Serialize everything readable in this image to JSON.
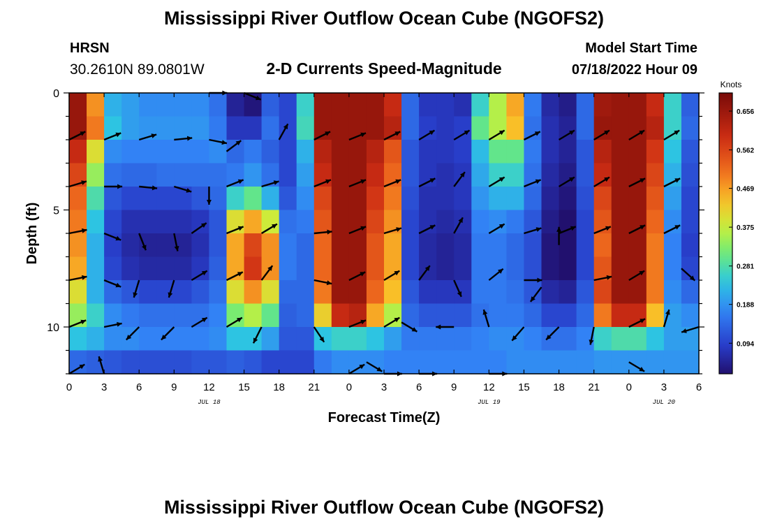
{
  "chart_data": {
    "type": "heatmap",
    "title": "Mississippi River Outflow Ocean Cube (NGOFS2)",
    "station_name": "HRSN",
    "station_coords": "30.2610N  89.0801W",
    "subtitle": "2-D Currents Speed-Magnitude",
    "model_start_label": "Model Start Time",
    "model_start_value": "07/18/2022 Hour 09",
    "xlabel": "Forecast Time(Z)",
    "ylabel": "Depth (ft)",
    "units_label": "Knots",
    "footer_title": "Mississippi River Outflow Ocean Cube (NGOFS2)",
    "x_ticks": [
      "0",
      "3",
      "6",
      "9",
      "12",
      "15",
      "18",
      "21",
      "0",
      "3",
      "6",
      "9",
      "12",
      "15",
      "18",
      "21",
      "0",
      "3",
      "6"
    ],
    "date_labels": [
      {
        "text": "JUL 18",
        "hour": 12
      },
      {
        "text": "JUL 19",
        "hour": 36
      },
      {
        "text": "JUL 20",
        "hour": 51
      }
    ],
    "y_ticks": [
      "0",
      "5",
      "10"
    ],
    "x_range_hours": [
      0,
      54
    ],
    "y_range_ft": [
      0,
      12
    ],
    "colorbar_ticks": [
      "0.656",
      "0.562",
      "0.469",
      "0.375",
      "0.281",
      "0.188",
      "0.094"
    ],
    "colorbar_range": [
      0.02,
      0.7
    ],
    "grid": false,
    "column_hours": [
      0,
      1.5,
      3,
      4.5,
      6,
      7.5,
      9,
      10.5,
      12,
      13.5,
      15,
      16.5,
      18,
      19.5,
      21,
      22.5,
      24,
      25.5,
      27,
      28.5,
      30,
      31.5,
      33,
      34.5,
      36,
      37.5,
      39,
      40.5,
      42,
      43.5,
      45,
      46.5,
      48,
      49.5,
      51,
      52.5
    ],
    "row_depths_ft": [
      0,
      1,
      2,
      3,
      4,
      5,
      6,
      7,
      8,
      9,
      10,
      11
    ],
    "speed_grid_knots": [
      [
        0.66,
        0.48,
        0.22,
        0.2,
        0.18,
        0.18,
        0.18,
        0.18,
        0.15,
        0.05,
        0.03,
        0.13,
        0.1,
        0.26,
        0.66,
        0.66,
        0.66,
        0.66,
        0.6,
        0.14,
        0.08,
        0.08,
        0.07,
        0.26,
        0.36,
        0.46,
        0.16,
        0.06,
        0.04,
        0.14,
        0.65,
        0.66,
        0.66,
        0.6,
        0.26,
        0.13
      ],
      [
        0.66,
        0.5,
        0.24,
        0.2,
        0.19,
        0.19,
        0.19,
        0.19,
        0.16,
        0.08,
        0.08,
        0.15,
        0.1,
        0.27,
        0.66,
        0.66,
        0.66,
        0.66,
        0.62,
        0.14,
        0.09,
        0.08,
        0.09,
        0.3,
        0.36,
        0.44,
        0.15,
        0.07,
        0.05,
        0.14,
        0.66,
        0.66,
        0.66,
        0.62,
        0.26,
        0.14
      ],
      [
        0.6,
        0.4,
        0.18,
        0.17,
        0.17,
        0.17,
        0.17,
        0.17,
        0.18,
        0.14,
        0.16,
        0.13,
        0.1,
        0.22,
        0.62,
        0.66,
        0.66,
        0.62,
        0.54,
        0.12,
        0.08,
        0.08,
        0.09,
        0.23,
        0.3,
        0.3,
        0.16,
        0.07,
        0.05,
        0.12,
        0.62,
        0.66,
        0.66,
        0.58,
        0.24,
        0.12
      ],
      [
        0.56,
        0.34,
        0.15,
        0.14,
        0.14,
        0.15,
        0.15,
        0.15,
        0.15,
        0.16,
        0.19,
        0.15,
        0.1,
        0.2,
        0.6,
        0.66,
        0.66,
        0.6,
        0.52,
        0.12,
        0.08,
        0.07,
        0.08,
        0.21,
        0.26,
        0.26,
        0.15,
        0.06,
        0.04,
        0.12,
        0.6,
        0.66,
        0.66,
        0.56,
        0.22,
        0.11
      ],
      [
        0.52,
        0.28,
        0.12,
        0.1,
        0.1,
        0.1,
        0.1,
        0.12,
        0.14,
        0.26,
        0.3,
        0.22,
        0.12,
        0.18,
        0.56,
        0.66,
        0.66,
        0.58,
        0.5,
        0.11,
        0.07,
        0.07,
        0.08,
        0.19,
        0.22,
        0.22,
        0.14,
        0.05,
        0.03,
        0.11,
        0.56,
        0.66,
        0.66,
        0.54,
        0.2,
        0.1
      ],
      [
        0.5,
        0.24,
        0.1,
        0.07,
        0.07,
        0.07,
        0.07,
        0.08,
        0.12,
        0.4,
        0.46,
        0.38,
        0.15,
        0.16,
        0.54,
        0.66,
        0.66,
        0.56,
        0.48,
        0.1,
        0.07,
        0.06,
        0.07,
        0.17,
        0.18,
        0.16,
        0.12,
        0.04,
        0.02,
        0.1,
        0.54,
        0.66,
        0.66,
        0.52,
        0.18,
        0.1
      ],
      [
        0.48,
        0.22,
        0.09,
        0.06,
        0.05,
        0.05,
        0.05,
        0.07,
        0.12,
        0.46,
        0.56,
        0.48,
        0.16,
        0.14,
        0.52,
        0.66,
        0.66,
        0.54,
        0.46,
        0.1,
        0.06,
        0.05,
        0.06,
        0.16,
        0.16,
        0.14,
        0.11,
        0.03,
        0.02,
        0.1,
        0.52,
        0.66,
        0.66,
        0.5,
        0.17,
        0.09
      ],
      [
        0.46,
        0.22,
        0.1,
        0.07,
        0.06,
        0.06,
        0.06,
        0.08,
        0.13,
        0.46,
        0.58,
        0.48,
        0.16,
        0.14,
        0.52,
        0.66,
        0.66,
        0.54,
        0.46,
        0.1,
        0.06,
        0.05,
        0.06,
        0.16,
        0.16,
        0.14,
        0.11,
        0.03,
        0.01,
        0.1,
        0.54,
        0.66,
        0.66,
        0.5,
        0.17,
        0.1
      ],
      [
        0.4,
        0.22,
        0.14,
        0.12,
        0.1,
        0.1,
        0.1,
        0.12,
        0.15,
        0.4,
        0.48,
        0.4,
        0.14,
        0.14,
        0.5,
        0.66,
        0.66,
        0.52,
        0.44,
        0.12,
        0.08,
        0.08,
        0.08,
        0.16,
        0.16,
        0.15,
        0.12,
        0.06,
        0.05,
        0.12,
        0.56,
        0.66,
        0.66,
        0.5,
        0.18,
        0.14
      ],
      [
        0.34,
        0.26,
        0.18,
        0.16,
        0.15,
        0.15,
        0.15,
        0.15,
        0.17,
        0.32,
        0.36,
        0.3,
        0.13,
        0.14,
        0.42,
        0.6,
        0.62,
        0.46,
        0.36,
        0.14,
        0.12,
        0.12,
        0.12,
        0.15,
        0.16,
        0.16,
        0.14,
        0.1,
        0.1,
        0.14,
        0.5,
        0.6,
        0.6,
        0.44,
        0.2,
        0.18
      ],
      [
        0.24,
        0.22,
        0.18,
        0.18,
        0.17,
        0.17,
        0.17,
        0.17,
        0.18,
        0.24,
        0.24,
        0.2,
        0.12,
        0.12,
        0.24,
        0.26,
        0.26,
        0.24,
        0.2,
        0.16,
        0.16,
        0.16,
        0.16,
        0.17,
        0.18,
        0.18,
        0.17,
        0.15,
        0.15,
        0.17,
        0.26,
        0.28,
        0.28,
        0.24,
        0.2,
        0.2
      ],
      [
        0.14,
        0.13,
        0.12,
        0.11,
        0.11,
        0.11,
        0.11,
        0.12,
        0.12,
        0.13,
        0.12,
        0.1,
        0.1,
        0.1,
        0.16,
        0.18,
        0.18,
        0.18,
        0.17,
        0.17,
        0.17,
        0.17,
        0.17,
        0.17,
        0.17,
        0.18,
        0.18,
        0.18,
        0.18,
        0.18,
        0.19,
        0.19,
        0.19,
        0.19,
        0.19,
        0.19
      ]
    ],
    "current_vectors": [
      {
        "hour": 0,
        "depth": 2,
        "dx": 1,
        "dy": -0.5
      },
      {
        "hour": 3,
        "depth": 2,
        "dx": 1,
        "dy": -0.4
      },
      {
        "hour": 6,
        "depth": 2,
        "dx": 1,
        "dy": -0.3
      },
      {
        "hour": 9,
        "depth": 2,
        "dx": 1,
        "dy": -0.1
      },
      {
        "hour": 12,
        "depth": 2,
        "dx": 1,
        "dy": 0.2
      },
      {
        "hour": 13.5,
        "depth": 2.5,
        "dx": 0.8,
        "dy": -0.6
      },
      {
        "hour": 18,
        "depth": 2,
        "dx": 0.5,
        "dy": -0.9
      },
      {
        "hour": 21,
        "depth": 2,
        "dx": 1,
        "dy": -0.5
      },
      {
        "hour": 24,
        "depth": 2,
        "dx": 1,
        "dy": -0.4
      },
      {
        "hour": 27,
        "depth": 2,
        "dx": 1,
        "dy": -0.5
      },
      {
        "hour": 30,
        "depth": 2,
        "dx": 1,
        "dy": -0.6
      },
      {
        "hour": 33,
        "depth": 2,
        "dx": 1,
        "dy": -0.6
      },
      {
        "hour": 36,
        "depth": 2,
        "dx": 1,
        "dy": -0.6
      },
      {
        "hour": 39,
        "depth": 2,
        "dx": 1,
        "dy": -0.5
      },
      {
        "hour": 42,
        "depth": 2,
        "dx": 1,
        "dy": -0.6
      },
      {
        "hour": 45,
        "depth": 2,
        "dx": 1,
        "dy": -0.6
      },
      {
        "hour": 48,
        "depth": 2,
        "dx": 1,
        "dy": -0.6
      },
      {
        "hour": 51,
        "depth": 2,
        "dx": 1,
        "dy": -0.6
      },
      {
        "hour": 0,
        "depth": 4,
        "dx": 1,
        "dy": -0.3
      },
      {
        "hour": 3,
        "depth": 4,
        "dx": 1,
        "dy": 0
      },
      {
        "hour": 6,
        "depth": 4,
        "dx": 1,
        "dy": 0.1
      },
      {
        "hour": 9,
        "depth": 4,
        "dx": 1,
        "dy": 0.3
      },
      {
        "hour": 12,
        "depth": 4,
        "dx": 0,
        "dy": 1
      },
      {
        "hour": 13.5,
        "depth": 4,
        "dx": 1,
        "dy": -0.4
      },
      {
        "hour": 16.5,
        "depth": 4,
        "dx": 1,
        "dy": -0.3
      },
      {
        "hour": 21,
        "depth": 4,
        "dx": 1,
        "dy": -0.4
      },
      {
        "hour": 24,
        "depth": 4,
        "dx": 1,
        "dy": -0.4
      },
      {
        "hour": 27,
        "depth": 4,
        "dx": 1,
        "dy": -0.4
      },
      {
        "hour": 30,
        "depth": 4,
        "dx": 1,
        "dy": -0.5
      },
      {
        "hour": 33,
        "depth": 4,
        "dx": 0.6,
        "dy": -0.8
      },
      {
        "hour": 36,
        "depth": 4,
        "dx": 1,
        "dy": -0.6
      },
      {
        "hour": 39,
        "depth": 4,
        "dx": 1,
        "dy": -0.4
      },
      {
        "hour": 42,
        "depth": 4,
        "dx": 1,
        "dy": -0.6
      },
      {
        "hour": 45,
        "depth": 4,
        "dx": 1,
        "dy": -0.6
      },
      {
        "hour": 48,
        "depth": 4,
        "dx": 1,
        "dy": -0.5
      },
      {
        "hour": 51,
        "depth": 4,
        "dx": 1,
        "dy": -0.5
      },
      {
        "hour": 0,
        "depth": 6,
        "dx": 1,
        "dy": -0.2
      },
      {
        "hour": 3,
        "depth": 6,
        "dx": 1,
        "dy": 0.4
      },
      {
        "hour": 6,
        "depth": 6,
        "dx": 0.4,
        "dy": 1
      },
      {
        "hour": 9,
        "depth": 6,
        "dx": 0.2,
        "dy": 1
      },
      {
        "hour": 10.5,
        "depth": 6,
        "dx": 1,
        "dy": -0.7
      },
      {
        "hour": 13.5,
        "depth": 6,
        "dx": 1,
        "dy": -0.4
      },
      {
        "hour": 16.5,
        "depth": 6,
        "dx": 1,
        "dy": -0.6
      },
      {
        "hour": 21,
        "depth": 6,
        "dx": 1,
        "dy": -0.1
      },
      {
        "hour": 24,
        "depth": 6,
        "dx": 1,
        "dy": -0.4
      },
      {
        "hour": 27,
        "depth": 6,
        "dx": 1,
        "dy": -0.3
      },
      {
        "hour": 30,
        "depth": 6,
        "dx": 1,
        "dy": -0.5
      },
      {
        "hour": 33,
        "depth": 6,
        "dx": 0.5,
        "dy": -0.9
      },
      {
        "hour": 36,
        "depth": 6,
        "dx": 1,
        "dy": -0.6
      },
      {
        "hour": 39,
        "depth": 6,
        "dx": 1,
        "dy": -0.3
      },
      {
        "hour": 42,
        "depth": 6,
        "dx": 1,
        "dy": -0.4
      },
      {
        "hour": 45,
        "depth": 6,
        "dx": 1,
        "dy": -0.4
      },
      {
        "hour": 48,
        "depth": 6,
        "dx": 1,
        "dy": -0.5
      },
      {
        "hour": 51,
        "depth": 6,
        "dx": 1,
        "dy": -0.5
      },
      {
        "hour": 0,
        "depth": 8,
        "dx": 1,
        "dy": -0.2
      },
      {
        "hour": 3,
        "depth": 8,
        "dx": 1,
        "dy": 0.4
      },
      {
        "hour": 6,
        "depth": 8,
        "dx": -0.3,
        "dy": 1
      },
      {
        "hour": 9,
        "depth": 8,
        "dx": -0.3,
        "dy": 1
      },
      {
        "hour": 10.5,
        "depth": 8,
        "dx": 1,
        "dy": -0.6
      },
      {
        "hour": 13.5,
        "depth": 8,
        "dx": 1,
        "dy": -0.5
      },
      {
        "hour": 16.5,
        "depth": 8,
        "dx": 0.6,
        "dy": -0.8
      },
      {
        "hour": 21,
        "depth": 8,
        "dx": 1,
        "dy": 0.2
      },
      {
        "hour": 24,
        "depth": 8,
        "dx": 1,
        "dy": -0.5
      },
      {
        "hour": 27,
        "depth": 8,
        "dx": 1,
        "dy": -0.6
      },
      {
        "hour": 30,
        "depth": 8,
        "dx": 0.6,
        "dy": -0.8
      },
      {
        "hour": 33,
        "depth": 8,
        "dx": 0.4,
        "dy": 0.9
      },
      {
        "hour": 36,
        "depth": 8,
        "dx": 1,
        "dy": -0.8
      },
      {
        "hour": 39,
        "depth": 8,
        "dx": 1,
        "dy": 0
      },
      {
        "hour": 40.5,
        "depth": 8.3,
        "dx": -0.6,
        "dy": 0.8
      },
      {
        "hour": 45,
        "depth": 8,
        "dx": 1,
        "dy": -0.2
      },
      {
        "hour": 48,
        "depth": 8,
        "dx": 1,
        "dy": -0.6
      },
      {
        "hour": 52.5,
        "depth": 7.5,
        "dx": 1,
        "dy": 0.9
      },
      {
        "hour": 0,
        "depth": 10,
        "dx": 1,
        "dy": -0.4
      },
      {
        "hour": 3,
        "depth": 10,
        "dx": 1,
        "dy": -0.2
      },
      {
        "hour": 6,
        "depth": 10,
        "dx": -0.8,
        "dy": 0.8
      },
      {
        "hour": 9,
        "depth": 10,
        "dx": -0.8,
        "dy": 0.8
      },
      {
        "hour": 10.5,
        "depth": 10,
        "dx": 1,
        "dy": -0.6
      },
      {
        "hour": 13.5,
        "depth": 10,
        "dx": 1,
        "dy": -0.6
      },
      {
        "hour": 16.5,
        "depth": 10,
        "dx": -0.5,
        "dy": 1
      },
      {
        "hour": 21,
        "depth": 10,
        "dx": 0.6,
        "dy": 0.9
      },
      {
        "hour": 24,
        "depth": 10,
        "dx": 1,
        "dy": -0.4
      },
      {
        "hour": 27,
        "depth": 10,
        "dx": 1,
        "dy": -0.6
      },
      {
        "hour": 28.5,
        "depth": 9.8,
        "dx": 1,
        "dy": 0.6
      },
      {
        "hour": 33,
        "depth": 10,
        "dx": -1,
        "dy": 0
      },
      {
        "hour": 36,
        "depth": 10,
        "dx": -0.3,
        "dy": -1
      },
      {
        "hour": 39,
        "depth": 10,
        "dx": -0.7,
        "dy": 0.8
      },
      {
        "hour": 42,
        "depth": 10,
        "dx": -0.8,
        "dy": 0.8
      },
      {
        "hour": 45,
        "depth": 10,
        "dx": -0.2,
        "dy": 1
      },
      {
        "hour": 48,
        "depth": 10,
        "dx": 1,
        "dy": -0.5
      },
      {
        "hour": 51,
        "depth": 10,
        "dx": 0.3,
        "dy": -1
      },
      {
        "hour": 54,
        "depth": 10,
        "dx": -1,
        "dy": 0.3
      },
      {
        "hour": 0,
        "depth": 12,
        "dx": 1,
        "dy": -0.6
      },
      {
        "hour": 3,
        "depth": 12,
        "dx": -0.3,
        "dy": -1
      },
      {
        "hour": 24,
        "depth": 12,
        "dx": 1,
        "dy": -0.6
      },
      {
        "hour": 25.5,
        "depth": 11.5,
        "dx": 1,
        "dy": 0.6
      },
      {
        "hour": 27,
        "depth": 12,
        "dx": 1,
        "dy": 0
      },
      {
        "hour": 48,
        "depth": 11.5,
        "dx": 1,
        "dy": 0.6
      },
      {
        "hour": 30,
        "depth": 12,
        "dx": 1,
        "dy": 0
      },
      {
        "hour": 36,
        "depth": 12,
        "dx": 1,
        "dy": 0
      },
      {
        "hour": 12,
        "depth": 0,
        "dx": 1,
        "dy": 0
      },
      {
        "hour": 15,
        "depth": 0,
        "dx": 1,
        "dy": 0.4
      },
      {
        "hour": 42,
        "depth": 6.5,
        "dx": 0,
        "dy": -1
      }
    ]
  }
}
